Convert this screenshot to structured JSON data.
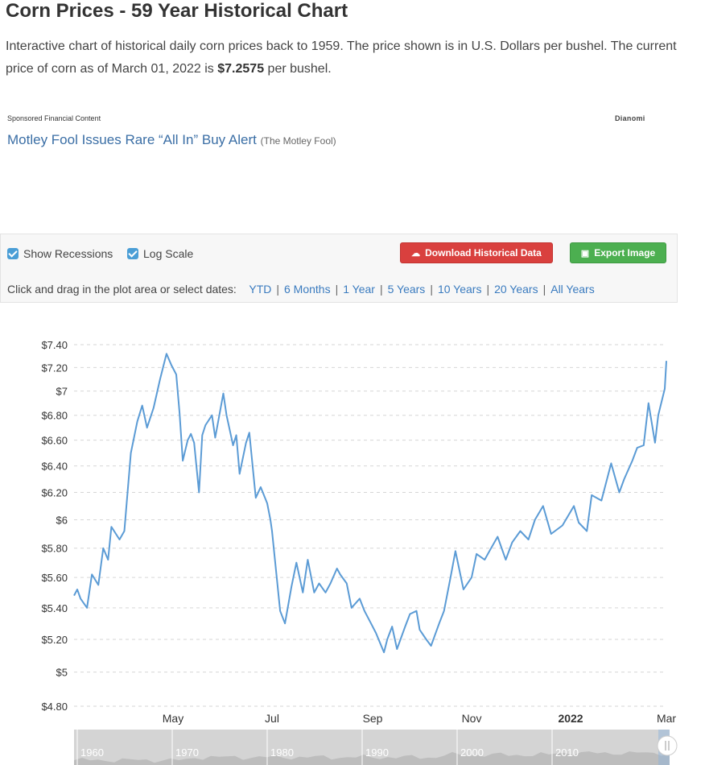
{
  "page": {
    "title": "Corn Prices - 59 Year Historical Chart",
    "intro_text": "Interactive chart of historical daily corn prices back to 1959. The price shown is in U.S. Dollars per bushel. The current price of corn as of March 01, 2022 is ",
    "intro_price": "$7.2575",
    "intro_suffix": " per bushel."
  },
  "sponsored": {
    "label": "Sponsored Financial Content",
    "brand": "Dianomi",
    "headline": "Motley Fool Issues Rare “All In” Buy Alert",
    "source": "(The Motley Fool)"
  },
  "toolbar": {
    "show_recessions": "Show Recessions",
    "log_scale": "Log Scale",
    "download_label": "Download Historical Data",
    "export_label": "Export Image",
    "drag_hint": "Click and drag in the plot area or select dates:",
    "ranges": [
      "YTD",
      "6 Months",
      "1 Year",
      "5 Years",
      "10 Years",
      "20 Years",
      "All Years"
    ]
  },
  "colors": {
    "line": "#5b9bd5",
    "download_button": "#d9403e",
    "export_button": "#4caf50",
    "link": "#3a7bbf"
  },
  "chart_data": {
    "type": "line",
    "y_scale": "log",
    "ylim": [
      4.8,
      7.4
    ],
    "x_range": [
      "2021-03-01",
      "2022-03-01"
    ],
    "y_ticks": [
      {
        "value": 4.8,
        "label": "$4.80"
      },
      {
        "value": 5.0,
        "label": "$5"
      },
      {
        "value": 5.2,
        "label": "$5.20"
      },
      {
        "value": 5.4,
        "label": "$5.40"
      },
      {
        "value": 5.6,
        "label": "$5.60"
      },
      {
        "value": 5.8,
        "label": "$5.80"
      },
      {
        "value": 6.0,
        "label": "$6"
      },
      {
        "value": 6.2,
        "label": "$6.20"
      },
      {
        "value": 6.4,
        "label": "$6.40"
      },
      {
        "value": 6.6,
        "label": "$6.60"
      },
      {
        "value": 6.8,
        "label": "$6.80"
      },
      {
        "value": 7.0,
        "label": "$7"
      },
      {
        "value": 7.2,
        "label": "$7.20"
      },
      {
        "value": 7.4,
        "label": "$7.40"
      }
    ],
    "x_ticks": [
      {
        "date": "2021-05-01",
        "label": "May",
        "bold": false
      },
      {
        "date": "2021-07-01",
        "label": "Jul",
        "bold": false
      },
      {
        "date": "2021-09-01",
        "label": "Sep",
        "bold": false
      },
      {
        "date": "2021-11-01",
        "label": "Nov",
        "bold": false
      },
      {
        "date": "2022-01-01",
        "label": "2022",
        "bold": true
      },
      {
        "date": "2022-03-01",
        "label": "Mar",
        "bold": false
      }
    ],
    "series": [
      {
        "x": [
          "2021-03-01",
          "2021-03-03",
          "2021-03-05",
          "2021-03-09",
          "2021-03-12",
          "2021-03-16",
          "2021-03-19",
          "2021-03-22",
          "2021-03-24",
          "2021-03-29",
          "2021-04-01",
          "2021-04-05",
          "2021-04-09",
          "2021-04-12",
          "2021-04-15",
          "2021-04-19",
          "2021-04-23",
          "2021-04-27",
          "2021-04-30",
          "2021-05-03",
          "2021-05-05",
          "2021-05-07",
          "2021-05-10",
          "2021-05-12",
          "2021-05-14",
          "2021-05-17",
          "2021-05-19",
          "2021-05-21",
          "2021-05-25",
          "2021-05-27",
          "2021-06-01",
          "2021-06-03",
          "2021-06-07",
          "2021-06-09",
          "2021-06-11",
          "2021-06-15",
          "2021-06-17",
          "2021-06-21",
          "2021-06-24",
          "2021-06-28",
          "2021-06-30",
          "2021-07-01",
          "2021-07-06",
          "2021-07-09",
          "2021-07-13",
          "2021-07-16",
          "2021-07-20",
          "2021-07-23",
          "2021-07-27",
          "2021-07-30",
          "2021-08-03",
          "2021-08-06",
          "2021-08-10",
          "2021-08-12",
          "2021-08-16",
          "2021-08-19",
          "2021-08-24",
          "2021-08-27",
          "2021-08-31",
          "2021-09-03",
          "2021-09-08",
          "2021-09-10",
          "2021-09-13",
          "2021-09-16",
          "2021-09-21",
          "2021-09-24",
          "2021-09-28",
          "2021-09-30",
          "2021-10-04",
          "2021-10-07",
          "2021-10-12",
          "2021-10-15",
          "2021-10-19",
          "2021-10-22",
          "2021-10-27",
          "2021-11-01",
          "2021-11-04",
          "2021-11-09",
          "2021-11-12",
          "2021-11-17",
          "2021-11-22",
          "2021-11-26",
          "2021-12-01",
          "2021-12-06",
          "2021-12-10",
          "2021-12-15",
          "2021-12-20",
          "2021-12-27",
          "2022-01-03",
          "2022-01-06",
          "2022-01-11",
          "2022-01-14",
          "2022-01-20",
          "2022-01-26",
          "2022-01-31",
          "2022-02-03",
          "2022-02-08",
          "2022-02-11",
          "2022-02-15",
          "2022-02-18",
          "2022-02-22",
          "2022-02-24",
          "2022-02-28",
          "2022-03-01"
        ],
        "values": [
          5.48,
          5.52,
          5.46,
          5.4,
          5.62,
          5.55,
          5.8,
          5.72,
          5.95,
          5.86,
          5.92,
          6.5,
          6.75,
          6.88,
          6.7,
          6.86,
          7.1,
          7.32,
          7.22,
          7.14,
          6.82,
          6.44,
          6.6,
          6.65,
          6.58,
          6.2,
          6.64,
          6.72,
          6.8,
          6.62,
          6.98,
          6.8,
          6.56,
          6.64,
          6.34,
          6.58,
          6.66,
          6.16,
          6.24,
          6.12,
          6.0,
          5.92,
          5.38,
          5.3,
          5.54,
          5.7,
          5.5,
          5.72,
          5.5,
          5.56,
          5.5,
          5.56,
          5.66,
          5.62,
          5.56,
          5.4,
          5.46,
          5.38,
          5.3,
          5.24,
          5.12,
          5.2,
          5.28,
          5.14,
          5.28,
          5.36,
          5.38,
          5.26,
          5.2,
          5.16,
          5.3,
          5.38,
          5.6,
          5.78,
          5.52,
          5.6,
          5.76,
          5.72,
          5.78,
          5.88,
          5.72,
          5.84,
          5.92,
          5.86,
          6.0,
          6.1,
          5.9,
          5.96,
          6.1,
          5.98,
          5.92,
          6.18,
          6.14,
          6.42,
          6.2,
          6.3,
          6.44,
          6.54,
          6.56,
          6.9,
          6.58,
          6.8,
          7.02,
          7.2575
        ]
      }
    ]
  },
  "navigator": {
    "labels": [
      "1960",
      "1970",
      "1980",
      "1990",
      "2000",
      "2010"
    ]
  }
}
